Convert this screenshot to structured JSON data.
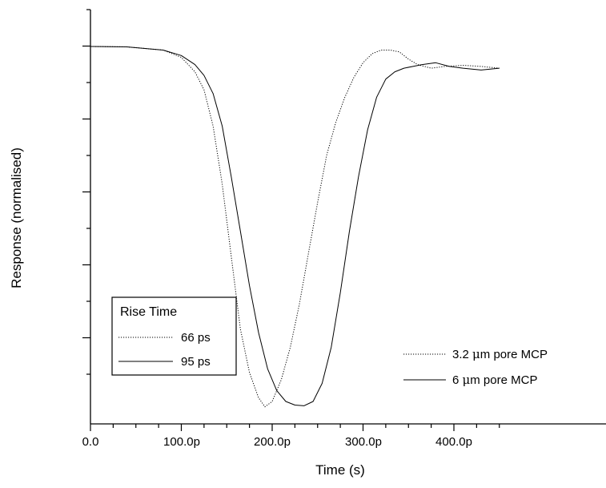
{
  "chart_data": {
    "type": "line",
    "title": "",
    "xlabel": "Time (s)",
    "ylabel": "Response (normalised)",
    "xlim": [
      0,
      450
    ],
    "ylim": [
      0,
      1
    ],
    "x_ticks": [
      {
        "value": 0,
        "label": "0.0"
      },
      {
        "value": 100,
        "label": "100.0p"
      },
      {
        "value": 200,
        "label": "200.0p"
      },
      {
        "value": 300,
        "label": "300.0p"
      },
      {
        "value": 400,
        "label": "400.0p"
      }
    ],
    "grid": false,
    "legend": {
      "rise_time": {
        "title": "Rise Time",
        "entries": [
          {
            "label": "66 ps",
            "style": "dotted"
          },
          {
            "label": "95 ps",
            "style": "solid"
          }
        ]
      },
      "pore": {
        "entries": [
          {
            "label_prefix": "3.2 ",
            "mu": "μ",
            "label_suffix": "m pore MCP",
            "style": "dotted"
          },
          {
            "label_prefix": "6 ",
            "mu": "μ",
            "label_suffix": "m pore MCP",
            "style": "solid"
          }
        ]
      }
    },
    "series": [
      {
        "style": "dotted",
        "x": [
          0,
          40,
          80,
          100,
          115,
          125,
          135,
          145,
          155,
          165,
          175,
          185,
          192,
          200,
          210,
          220,
          230,
          240,
          250,
          260,
          270,
          280,
          290,
          300,
          310,
          320,
          330,
          340,
          350,
          360,
          375,
          390,
          410,
          430,
          450
        ],
        "y": [
          1.0,
          0.999,
          0.99,
          0.97,
          0.93,
          0.88,
          0.78,
          0.62,
          0.42,
          0.22,
          0.1,
          0.03,
          0.005,
          0.02,
          0.08,
          0.17,
          0.29,
          0.43,
          0.57,
          0.7,
          0.79,
          0.86,
          0.915,
          0.955,
          0.98,
          0.99,
          0.99,
          0.985,
          0.965,
          0.95,
          0.94,
          0.945,
          0.948,
          0.945,
          0.94
        ]
      },
      {
        "style": "solid",
        "x": [
          0,
          40,
          80,
          100,
          115,
          125,
          135,
          145,
          155,
          165,
          175,
          185,
          195,
          205,
          215,
          225,
          235,
          245,
          255,
          265,
          275,
          285,
          295,
          305,
          315,
          325,
          335,
          345,
          355,
          365,
          380,
          395,
          410,
          430,
          450
        ],
        "y": [
          1.0,
          0.999,
          0.99,
          0.975,
          0.95,
          0.92,
          0.87,
          0.78,
          0.64,
          0.49,
          0.34,
          0.21,
          0.11,
          0.05,
          0.02,
          0.01,
          0.008,
          0.02,
          0.07,
          0.17,
          0.32,
          0.49,
          0.64,
          0.77,
          0.86,
          0.91,
          0.93,
          0.94,
          0.945,
          0.95,
          0.955,
          0.945,
          0.94,
          0.935,
          0.94
        ]
      }
    ]
  }
}
